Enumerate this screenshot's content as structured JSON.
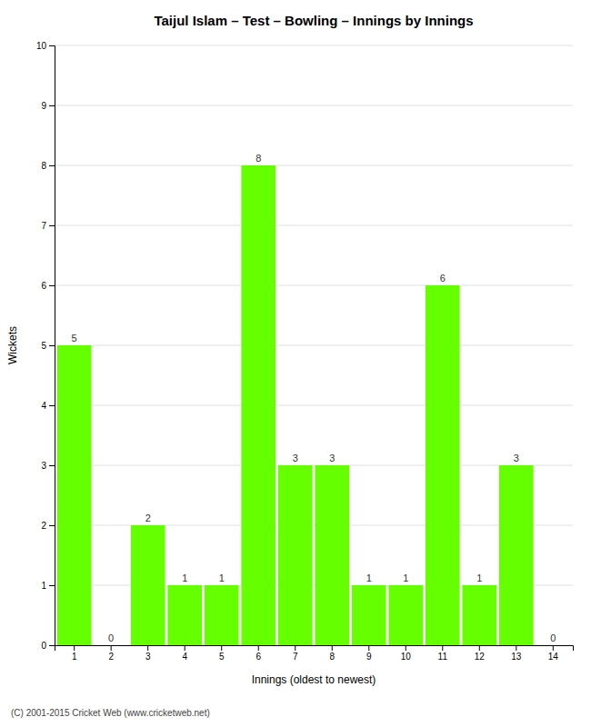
{
  "chart_data": {
    "type": "bar",
    "title": "Taijul Islam – Test – Bowling – Innings by Innings",
    "xlabel": "Innings (oldest to newest)",
    "ylabel": "Wickets",
    "categories": [
      "1",
      "2",
      "3",
      "4",
      "5",
      "6",
      "7",
      "8",
      "9",
      "10",
      "11",
      "12",
      "13",
      "14"
    ],
    "values": [
      5,
      0,
      2,
      1,
      1,
      8,
      3,
      3,
      1,
      1,
      6,
      1,
      3,
      0
    ],
    "color": "#66ff00",
    "ylim": [
      0,
      10
    ],
    "yticks": [
      0,
      1,
      2,
      3,
      4,
      5,
      6,
      7,
      8,
      9,
      10
    ],
    "grid": true,
    "data_labels": true,
    "annotations": [
      "(C) 2001-2015 Cricket Web (www.cricketweb.net)"
    ]
  }
}
